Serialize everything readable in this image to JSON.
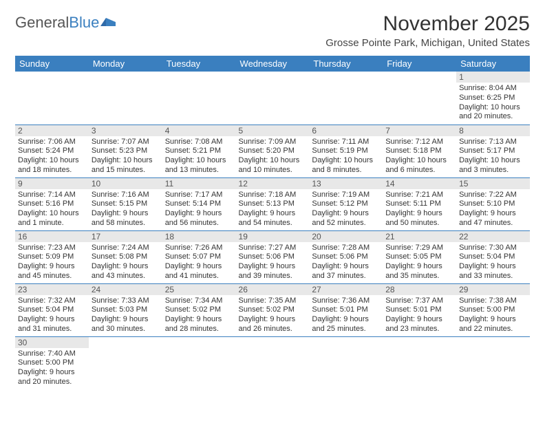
{
  "brand": {
    "part1": "General",
    "part2": "Blue"
  },
  "title": "November 2025",
  "subtitle": "Grosse Pointe Park, Michigan, United States",
  "columns": [
    "Sunday",
    "Monday",
    "Tuesday",
    "Wednesday",
    "Thursday",
    "Friday",
    "Saturday"
  ],
  "colors": {
    "header_bg": "#3a7fbf",
    "header_text": "#ffffff",
    "daynum_bg": "#e8e8e8",
    "border": "#3a7fbf",
    "body_text": "#333333",
    "background": "#ffffff"
  },
  "rows": [
    [
      null,
      null,
      null,
      null,
      null,
      null,
      {
        "n": "1",
        "sunrise": "Sunrise: 8:04 AM",
        "sunset": "Sunset: 6:25 PM",
        "d1": "Daylight: 10 hours",
        "d2": "and 20 minutes."
      }
    ],
    [
      {
        "n": "2",
        "sunrise": "Sunrise: 7:06 AM",
        "sunset": "Sunset: 5:24 PM",
        "d1": "Daylight: 10 hours",
        "d2": "and 18 minutes."
      },
      {
        "n": "3",
        "sunrise": "Sunrise: 7:07 AM",
        "sunset": "Sunset: 5:23 PM",
        "d1": "Daylight: 10 hours",
        "d2": "and 15 minutes."
      },
      {
        "n": "4",
        "sunrise": "Sunrise: 7:08 AM",
        "sunset": "Sunset: 5:21 PM",
        "d1": "Daylight: 10 hours",
        "d2": "and 13 minutes."
      },
      {
        "n": "5",
        "sunrise": "Sunrise: 7:09 AM",
        "sunset": "Sunset: 5:20 PM",
        "d1": "Daylight: 10 hours",
        "d2": "and 10 minutes."
      },
      {
        "n": "6",
        "sunrise": "Sunrise: 7:11 AM",
        "sunset": "Sunset: 5:19 PM",
        "d1": "Daylight: 10 hours",
        "d2": "and 8 minutes."
      },
      {
        "n": "7",
        "sunrise": "Sunrise: 7:12 AM",
        "sunset": "Sunset: 5:18 PM",
        "d1": "Daylight: 10 hours",
        "d2": "and 6 minutes."
      },
      {
        "n": "8",
        "sunrise": "Sunrise: 7:13 AM",
        "sunset": "Sunset: 5:17 PM",
        "d1": "Daylight: 10 hours",
        "d2": "and 3 minutes."
      }
    ],
    [
      {
        "n": "9",
        "sunrise": "Sunrise: 7:14 AM",
        "sunset": "Sunset: 5:16 PM",
        "d1": "Daylight: 10 hours",
        "d2": "and 1 minute."
      },
      {
        "n": "10",
        "sunrise": "Sunrise: 7:16 AM",
        "sunset": "Sunset: 5:15 PM",
        "d1": "Daylight: 9 hours",
        "d2": "and 58 minutes."
      },
      {
        "n": "11",
        "sunrise": "Sunrise: 7:17 AM",
        "sunset": "Sunset: 5:14 PM",
        "d1": "Daylight: 9 hours",
        "d2": "and 56 minutes."
      },
      {
        "n": "12",
        "sunrise": "Sunrise: 7:18 AM",
        "sunset": "Sunset: 5:13 PM",
        "d1": "Daylight: 9 hours",
        "d2": "and 54 minutes."
      },
      {
        "n": "13",
        "sunrise": "Sunrise: 7:19 AM",
        "sunset": "Sunset: 5:12 PM",
        "d1": "Daylight: 9 hours",
        "d2": "and 52 minutes."
      },
      {
        "n": "14",
        "sunrise": "Sunrise: 7:21 AM",
        "sunset": "Sunset: 5:11 PM",
        "d1": "Daylight: 9 hours",
        "d2": "and 50 minutes."
      },
      {
        "n": "15",
        "sunrise": "Sunrise: 7:22 AM",
        "sunset": "Sunset: 5:10 PM",
        "d1": "Daylight: 9 hours",
        "d2": "and 47 minutes."
      }
    ],
    [
      {
        "n": "16",
        "sunrise": "Sunrise: 7:23 AM",
        "sunset": "Sunset: 5:09 PM",
        "d1": "Daylight: 9 hours",
        "d2": "and 45 minutes."
      },
      {
        "n": "17",
        "sunrise": "Sunrise: 7:24 AM",
        "sunset": "Sunset: 5:08 PM",
        "d1": "Daylight: 9 hours",
        "d2": "and 43 minutes."
      },
      {
        "n": "18",
        "sunrise": "Sunrise: 7:26 AM",
        "sunset": "Sunset: 5:07 PM",
        "d1": "Daylight: 9 hours",
        "d2": "and 41 minutes."
      },
      {
        "n": "19",
        "sunrise": "Sunrise: 7:27 AM",
        "sunset": "Sunset: 5:06 PM",
        "d1": "Daylight: 9 hours",
        "d2": "and 39 minutes."
      },
      {
        "n": "20",
        "sunrise": "Sunrise: 7:28 AM",
        "sunset": "Sunset: 5:06 PM",
        "d1": "Daylight: 9 hours",
        "d2": "and 37 minutes."
      },
      {
        "n": "21",
        "sunrise": "Sunrise: 7:29 AM",
        "sunset": "Sunset: 5:05 PM",
        "d1": "Daylight: 9 hours",
        "d2": "and 35 minutes."
      },
      {
        "n": "22",
        "sunrise": "Sunrise: 7:30 AM",
        "sunset": "Sunset: 5:04 PM",
        "d1": "Daylight: 9 hours",
        "d2": "and 33 minutes."
      }
    ],
    [
      {
        "n": "23",
        "sunrise": "Sunrise: 7:32 AM",
        "sunset": "Sunset: 5:04 PM",
        "d1": "Daylight: 9 hours",
        "d2": "and 31 minutes."
      },
      {
        "n": "24",
        "sunrise": "Sunrise: 7:33 AM",
        "sunset": "Sunset: 5:03 PM",
        "d1": "Daylight: 9 hours",
        "d2": "and 30 minutes."
      },
      {
        "n": "25",
        "sunrise": "Sunrise: 7:34 AM",
        "sunset": "Sunset: 5:02 PM",
        "d1": "Daylight: 9 hours",
        "d2": "and 28 minutes."
      },
      {
        "n": "26",
        "sunrise": "Sunrise: 7:35 AM",
        "sunset": "Sunset: 5:02 PM",
        "d1": "Daylight: 9 hours",
        "d2": "and 26 minutes."
      },
      {
        "n": "27",
        "sunrise": "Sunrise: 7:36 AM",
        "sunset": "Sunset: 5:01 PM",
        "d1": "Daylight: 9 hours",
        "d2": "and 25 minutes."
      },
      {
        "n": "28",
        "sunrise": "Sunrise: 7:37 AM",
        "sunset": "Sunset: 5:01 PM",
        "d1": "Daylight: 9 hours",
        "d2": "and 23 minutes."
      },
      {
        "n": "29",
        "sunrise": "Sunrise: 7:38 AM",
        "sunset": "Sunset: 5:00 PM",
        "d1": "Daylight: 9 hours",
        "d2": "and 22 minutes."
      }
    ],
    [
      {
        "n": "30",
        "sunrise": "Sunrise: 7:40 AM",
        "sunset": "Sunset: 5:00 PM",
        "d1": "Daylight: 9 hours",
        "d2": "and 20 minutes."
      },
      null,
      null,
      null,
      null,
      null,
      null
    ]
  ]
}
